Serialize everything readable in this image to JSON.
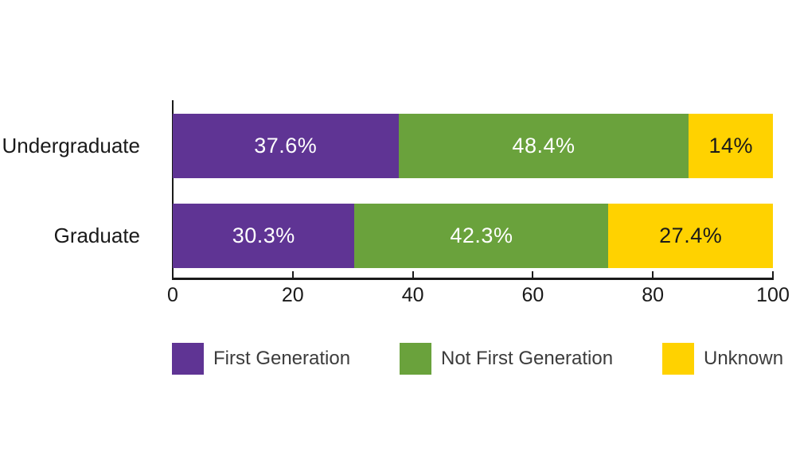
{
  "chart_data": {
    "type": "bar",
    "orientation": "horizontal",
    "stacked": true,
    "title": "",
    "categories": [
      "Undergraduate",
      "Graduate"
    ],
    "series": [
      {
        "name": "First Generation",
        "color": "#5f3494",
        "text_color": "#ffffff",
        "values": [
          37.6,
          30.3
        ],
        "value_labels": [
          "37.6%",
          "30.3%"
        ]
      },
      {
        "name": "Not First Generation",
        "color": "#6aa23c",
        "text_color": "#ffffff",
        "values": [
          48.4,
          42.3
        ],
        "value_labels": [
          "48.4%",
          "42.3%"
        ]
      },
      {
        "name": "Unknown",
        "color": "#ffd200",
        "text_color": "#1a1a1a",
        "values": [
          14,
          27.4
        ],
        "value_labels": [
          "14%",
          "27.4%"
        ]
      }
    ],
    "xlim": [
      0,
      100
    ],
    "x_ticks": [
      "0",
      "20",
      "40",
      "60",
      "80",
      "100"
    ],
    "x_tick_values": [
      0,
      20,
      40,
      60,
      80,
      100
    ],
    "xlabel": "",
    "ylabel": "",
    "grid": false,
    "legend_position": "bottom",
    "axis_color": "#1a1a1a",
    "background": "#ffffff"
  },
  "legend": {
    "items": [
      {
        "label": "First Generation",
        "color": "#5f3494"
      },
      {
        "label": "Not First Generation",
        "color": "#6aa23c"
      },
      {
        "label": "Unknown",
        "color": "#ffd200"
      }
    ]
  }
}
